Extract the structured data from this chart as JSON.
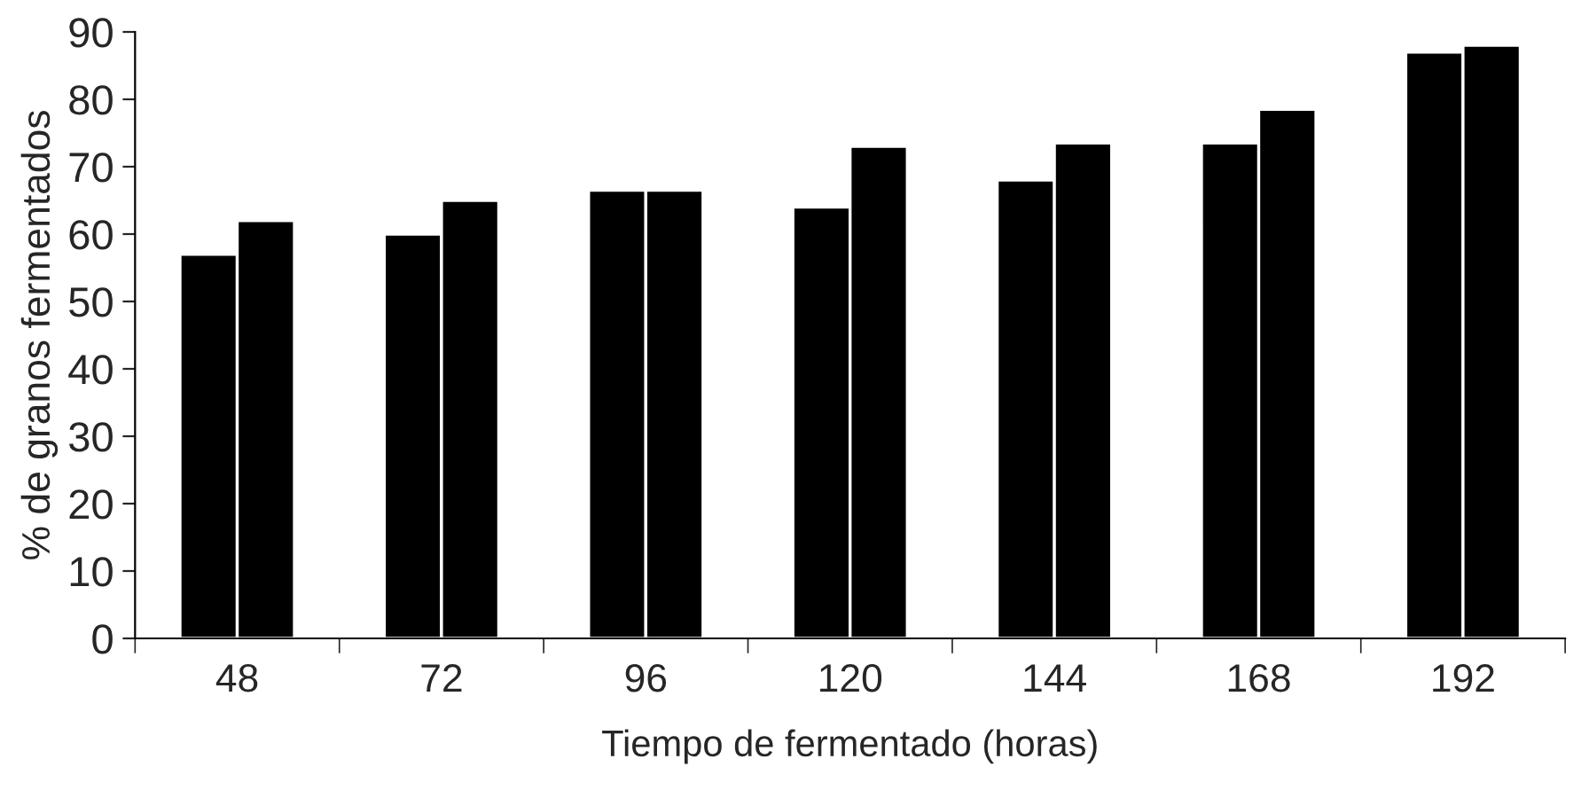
{
  "chart_data": {
    "type": "bar",
    "xlabel": "Tiempo de fermentado (horas)",
    "ylabel": "% de granos fermentados",
    "categories": [
      "48",
      "72",
      "96",
      "120",
      "144",
      "168",
      "192"
    ],
    "series": [
      {
        "color": "#000000",
        "values": [
          57,
          60,
          66.5,
          64,
          68,
          73.5,
          87
        ]
      },
      {
        "color": "#000000",
        "values": [
          62,
          65,
          66.5,
          73,
          73.5,
          78.5,
          88
        ]
      }
    ],
    "ylim": [
      0,
      90
    ],
    "yticks": [
      0,
      10,
      20,
      30,
      40,
      50,
      60,
      70,
      80,
      90
    ],
    "grid": false,
    "legend": false
  }
}
